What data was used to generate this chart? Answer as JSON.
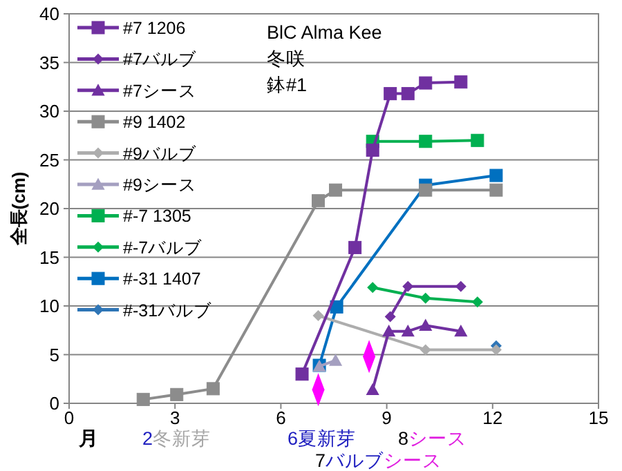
{
  "chart_data": {
    "type": "line",
    "xlabel": "月",
    "ylabel": "全長(cm)",
    "xlim": [
      0,
      15
    ],
    "ylim": [
      0,
      40
    ],
    "xticks": [
      0,
      3,
      6,
      9,
      12,
      15
    ],
    "yticks": [
      0,
      5,
      10,
      15,
      20,
      25,
      30,
      35,
      40
    ],
    "grid": "y",
    "legend": "top left",
    "annotations": [
      "BlC  Alma Kee",
      "冬咲",
      "鉢#1",
      "2冬新芽",
      "6夏新芽",
      "8シース",
      "7バルブシース"
    ],
    "series": [
      {
        "name": "#7 1206",
        "color": "#7030a0",
        "marker": "square",
        "x": [
          6.6,
          8.1,
          8.6,
          9.1,
          9.6,
          10.1,
          11.1
        ],
        "values": [
          3,
          16,
          26,
          31.8,
          31.8,
          32.9,
          33
        ]
      },
      {
        "name": "#7バルブ",
        "color": "#7030a0",
        "marker": "diamond",
        "x": [
          9.1,
          9.6,
          11.1
        ],
        "values": [
          8.9,
          12,
          12
        ]
      },
      {
        "name": "#7シース",
        "color": "#7030a0",
        "marker": "triangle",
        "x": [
          8.6,
          9.06,
          9.6,
          10.1,
          11.1
        ],
        "values": [
          1.4,
          7.4,
          7.4,
          8,
          7.4
        ]
      },
      {
        "name": "#9 1402",
        "color": "#8c8c8c",
        "marker": "square",
        "x": [
          2.1,
          3.05,
          4.08,
          7.06,
          7.55,
          10.1,
          12.1
        ],
        "values": [
          0.4,
          0.9,
          1.5,
          20.8,
          21.9,
          21.9,
          21.9
        ]
      },
      {
        "name": "#9バルブ",
        "color": "#adadad",
        "marker": "diamond",
        "x": [
          7.06,
          10.1,
          12.1
        ],
        "values": [
          9,
          5.5,
          5.5
        ]
      },
      {
        "name": "#9シース",
        "color": "#a49fc0",
        "marker": "triangle",
        "x": [
          7.09,
          7.55
        ],
        "values": [
          3.8,
          4.4
        ]
      },
      {
        "name": "#-7 1305",
        "color": "#00b050",
        "marker": "square",
        "x": [
          8.6,
          10.1,
          11.57
        ],
        "values": [
          26.9,
          26.9,
          27
        ]
      },
      {
        "name": "#-7バルブ",
        "color": "#00b050",
        "marker": "diamond",
        "x": [
          8.6,
          10.1,
          11.57
        ],
        "values": [
          11.9,
          10.8,
          10.4
        ]
      },
      {
        "name": "#-31 1407",
        "color": "#0070c0",
        "marker": "square",
        "x": [
          7.09,
          7.58,
          10.1,
          12.1
        ],
        "values": [
          3.9,
          9.9,
          22.4,
          23.4
        ]
      },
      {
        "name": "#-31バルブ",
        "color": "#2e75b6",
        "marker": "diamond",
        "x": [
          12.1
        ],
        "values": [
          5.9
        ]
      },
      {
        "type": "scatter",
        "color": "#ff00ff",
        "marker": "diamond",
        "x": [
          7.06,
          8.5
        ],
        "values": [
          1.4,
          4.8
        ]
      }
    ]
  }
}
